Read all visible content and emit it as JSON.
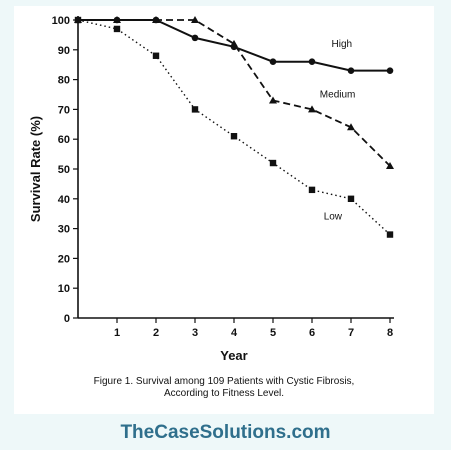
{
  "chart_data": {
    "type": "line",
    "title": "",
    "xlabel": "Year",
    "ylabel": "Survival Rate (%)",
    "xlim": [
      0,
      8
    ],
    "ylim": [
      0,
      100
    ],
    "x_ticks": [
      1,
      2,
      3,
      4,
      5,
      6,
      7,
      8
    ],
    "y_ticks": [
      0,
      10,
      20,
      30,
      40,
      50,
      60,
      70,
      80,
      90,
      100
    ],
    "grid": false,
    "series": [
      {
        "name": "High",
        "style": "solid",
        "marker": "circle",
        "x": [
          0,
          1,
          2,
          3,
          4,
          5,
          6,
          7,
          8
        ],
        "y": [
          100,
          100,
          100,
          94,
          91,
          86,
          86,
          83,
          83
        ]
      },
      {
        "name": "Medium",
        "style": "dashed",
        "marker": "triangle",
        "x": [
          0,
          1,
          2,
          3,
          4,
          5,
          6,
          7,
          8
        ],
        "y": [
          100,
          100,
          100,
          100,
          92,
          73,
          70,
          64,
          51
        ]
      },
      {
        "name": "Low",
        "style": "dotted",
        "marker": "square",
        "x": [
          0,
          1,
          2,
          3,
          4,
          5,
          6,
          7,
          8
        ],
        "y": [
          100,
          97,
          88,
          70,
          61,
          52,
          43,
          40,
          28
        ]
      }
    ]
  },
  "caption": {
    "line1": "Figure 1. Survival among 109 Patients with Cystic Fibrosis,",
    "line2": "According to Fitness Level."
  },
  "watermark": "TheCaseSolutions.com"
}
